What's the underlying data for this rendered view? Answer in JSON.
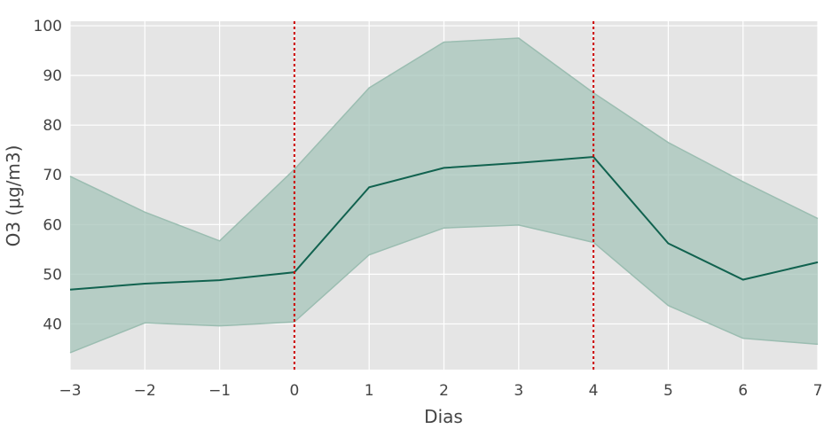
{
  "chart_data": {
    "type": "line",
    "title": "",
    "xlabel": "Dias",
    "ylabel": "O3 (μg/m3)",
    "x": [
      -3,
      -2,
      -1,
      0,
      1,
      2,
      3,
      4,
      5,
      6,
      7
    ],
    "x_ticks": [
      "−3",
      "−2",
      "−1",
      "0",
      "1",
      "2",
      "3",
      "4",
      "5",
      "6",
      "7"
    ],
    "y_ticks": [
      "40",
      "50",
      "60",
      "70",
      "80",
      "90",
      "100"
    ],
    "xlim": [
      -3,
      7
    ],
    "ylim": [
      30.8,
      100.9
    ],
    "series": [
      {
        "values": [
          46.9,
          48.1,
          48.8,
          50.4,
          67.5,
          71.4,
          72.4,
          73.6,
          56.2,
          48.9,
          52.4
        ],
        "color": "#11624f"
      }
    ],
    "band": {
      "upper": [
        69.7,
        62.5,
        56.7,
        71.1,
        87.5,
        96.7,
        97.5,
        86.5,
        76.5,
        68.6,
        61.2
      ],
      "lower": [
        34.2,
        40.2,
        39.6,
        40.4,
        53.9,
        59.3,
        59.9,
        56.4,
        43.7,
        37.1,
        35.9
      ],
      "color": "#a9c7bc"
    },
    "vlines": [
      {
        "x": 0,
        "color": "#cc0000",
        "style": "dotted"
      },
      {
        "x": 4,
        "color": "#cc0000",
        "style": "dotted"
      }
    ],
    "background": "#e5e5e5",
    "grid": true,
    "legend": "none"
  }
}
